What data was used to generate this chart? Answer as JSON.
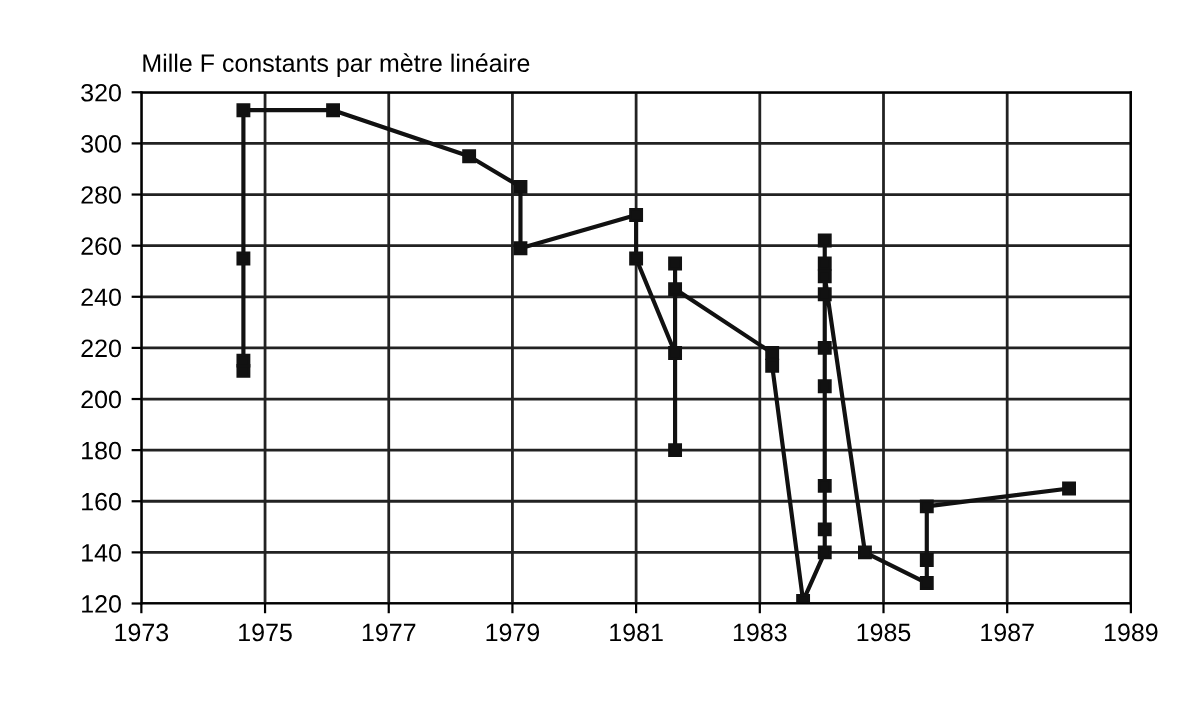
{
  "chart_data": {
    "type": "line",
    "ylabel": "Mille F constants par mètre linéaire",
    "series": [
      {
        "color": "#111111",
        "x": [
          1974.65,
          1974.65,
          1974.65,
          1974.65,
          1976.1,
          1978.3,
          1979.13,
          1979.13,
          1981.0,
          1981.0,
          1981.63,
          1981.63,
          1981.63,
          1981.63,
          1983.2,
          1983.2,
          1983.7,
          1984.05,
          1984.05,
          1984.05,
          1984.05,
          1984.05,
          1984.05,
          1984.05,
          1984.05,
          1984.05,
          1984.7,
          1985.7,
          1985.7,
          1985.7,
          1988.0
        ],
        "values": [
          211,
          215,
          255,
          313,
          313,
          295,
          283,
          259,
          272,
          255,
          218,
          180,
          253,
          243,
          218,
          213,
          121,
          140,
          149,
          166,
          205,
          220,
          241,
          253,
          262,
          248,
          140,
          128,
          137,
          158,
          165
        ]
      }
    ],
    "xlim": [
      1973,
      1989
    ],
    "xticks": [
      1973,
      1975,
      1977,
      1979,
      1981,
      1983,
      1985,
      1987,
      1989
    ],
    "ylim": [
      120,
      320
    ],
    "yticks": [
      120,
      140,
      160,
      180,
      200,
      220,
      240,
      260,
      280,
      300,
      320
    ],
    "grid": true,
    "marker": "square",
    "line_style": "solid"
  }
}
